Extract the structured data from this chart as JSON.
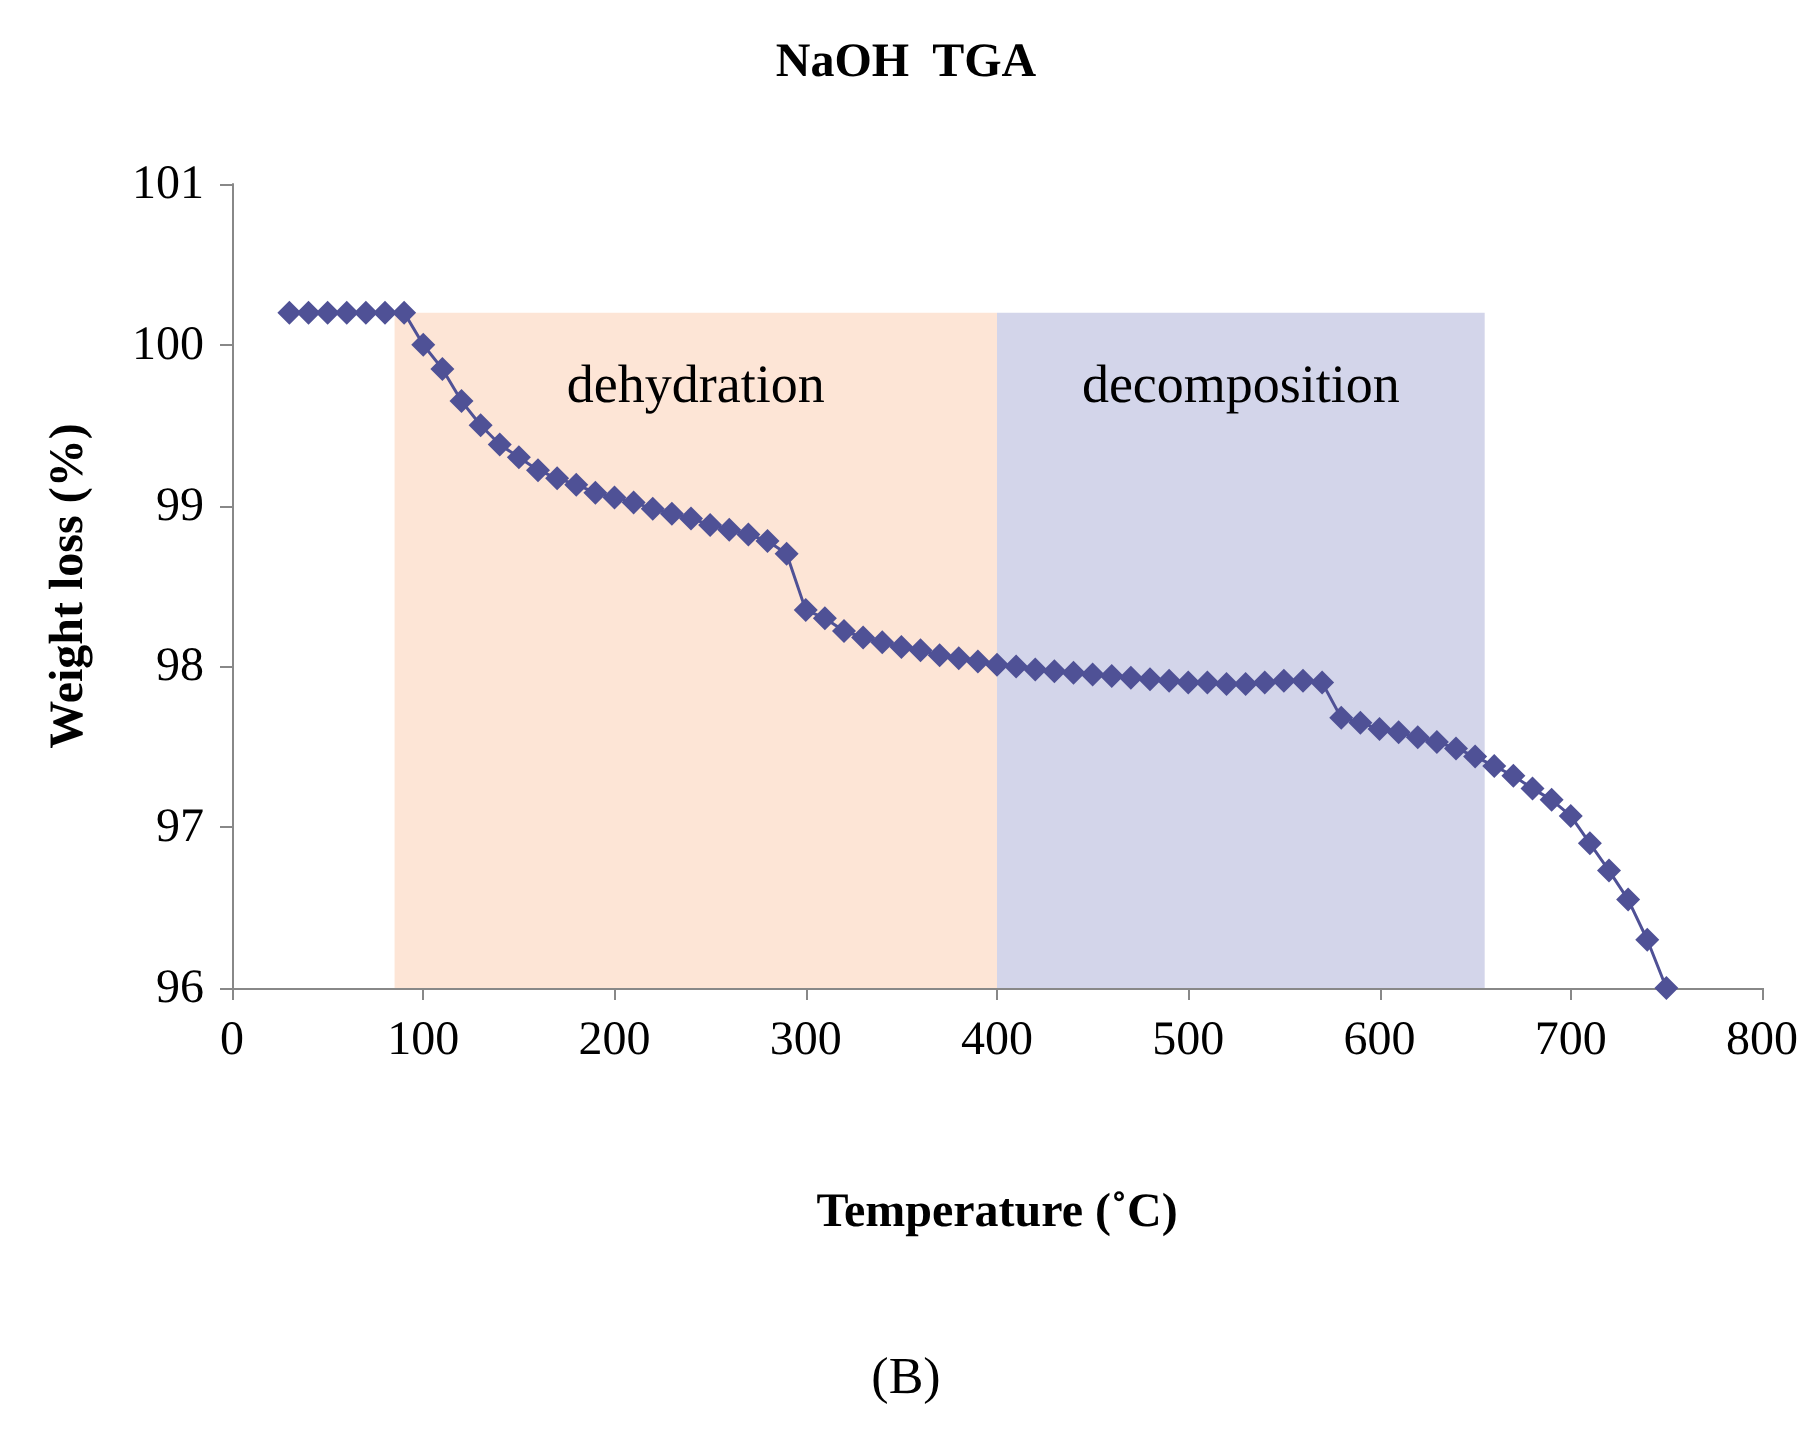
{
  "chart_data": {
    "type": "line",
    "title": "NaOH  TGA",
    "xlabel": "Temperature (˚C)",
    "ylabel": "Weight loss (%)",
    "x": [
      30,
      40,
      50,
      60,
      70,
      80,
      90,
      100,
      110,
      120,
      130,
      140,
      150,
      160,
      170,
      180,
      190,
      200,
      210,
      220,
      230,
      240,
      250,
      260,
      270,
      280,
      290,
      300,
      310,
      320,
      330,
      340,
      350,
      360,
      370,
      380,
      390,
      400,
      410,
      420,
      430,
      440,
      450,
      460,
      470,
      480,
      490,
      500,
      510,
      520,
      530,
      540,
      550,
      560,
      570,
      580,
      590,
      600,
      610,
      620,
      630,
      640,
      650,
      660,
      670,
      680,
      690,
      700,
      710,
      720,
      730,
      740,
      750
    ],
    "series": [
      {
        "color": "#4f5196",
        "values": [
          100.2,
          100.2,
          100.2,
          100.2,
          100.2,
          100.2,
          100.2,
          100.0,
          99.85,
          99.65,
          99.5,
          99.38,
          99.3,
          99.22,
          99.17,
          99.13,
          99.08,
          99.05,
          99.02,
          98.98,
          98.95,
          98.92,
          98.88,
          98.85,
          98.82,
          98.78,
          98.7,
          98.35,
          98.3,
          98.22,
          98.18,
          98.15,
          98.12,
          98.1,
          98.07,
          98.05,
          98.03,
          98.01,
          98.0,
          97.98,
          97.97,
          97.96,
          97.95,
          97.94,
          97.93,
          97.92,
          97.91,
          97.9,
          97.9,
          97.89,
          97.89,
          97.9,
          97.91,
          97.91,
          97.9,
          97.68,
          97.65,
          97.61,
          97.59,
          97.56,
          97.53,
          97.49,
          97.44,
          97.38,
          97.32,
          97.24,
          97.17,
          97.07,
          96.9,
          96.73,
          96.55,
          96.3,
          96.0
        ]
      }
    ],
    "xlim": [
      0,
      800
    ],
    "xticks": [
      0,
      100,
      200,
      300,
      400,
      500,
      600,
      700,
      800
    ],
    "ylim": [
      96,
      101
    ],
    "yticks": [
      96,
      97,
      98,
      99,
      100,
      101
    ],
    "bands": [
      {
        "axis": "x",
        "from": 85,
        "to": 400,
        "label": "dehydration",
        "color": "#fde5d6"
      },
      {
        "axis": "x",
        "from": 400,
        "to": 655,
        "label": "decomposition",
        "color": "#d3d5ea"
      }
    ],
    "annotations": [
      "(B)"
    ],
    "marker": "diamond",
    "line_style": "solid"
  }
}
